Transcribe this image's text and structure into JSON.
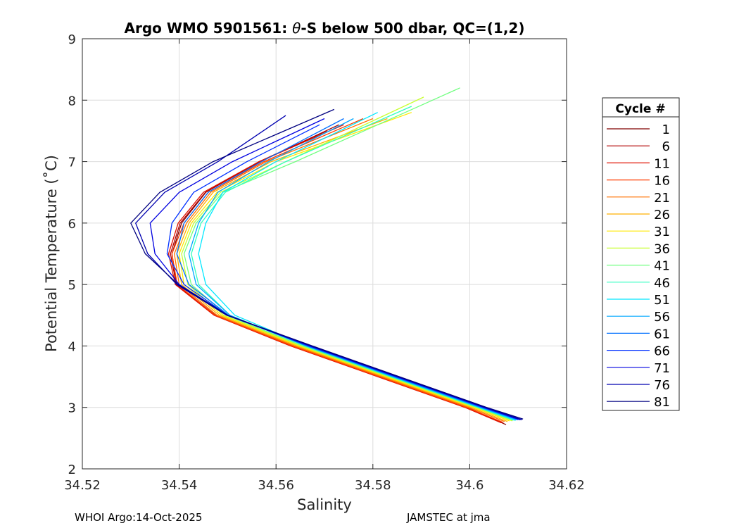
{
  "chart_data": {
    "type": "line",
    "title_prefix": "Argo WMO 5901561: ",
    "title_theta": "θ",
    "title_suffix": "-S below 500 dbar,  QC=(1,2)",
    "xlabel": "Salinity",
    "ylabel": "Potential Temperature (˚C)",
    "xlim": [
      34.52,
      34.62
    ],
    "ylim": [
      2,
      9
    ],
    "xticks": [
      34.52,
      34.54,
      34.56,
      34.58,
      34.6,
      34.62
    ],
    "xtick_labels": [
      "34.52",
      "34.54",
      "34.56",
      "34.58",
      "34.6",
      "34.62"
    ],
    "yticks": [
      2,
      3,
      4,
      5,
      6,
      7,
      8,
      9
    ],
    "ytick_labels": [
      "2",
      "3",
      "4",
      "5",
      "6",
      "7",
      "8",
      "9"
    ],
    "grid": true,
    "legend_title": "Cycle #",
    "legend_position": "outside-right",
    "legend": [
      {
        "label": "1",
        "color": "#800000"
      },
      {
        "label": "6",
        "color": "#b00000"
      },
      {
        "label": "11",
        "color": "#e01000"
      },
      {
        "label": "16",
        "color": "#ff3c00"
      },
      {
        "label": "21",
        "color": "#ff7000"
      },
      {
        "label": "26",
        "color": "#ffb000"
      },
      {
        "label": "31",
        "color": "#ffe800"
      },
      {
        "label": "36",
        "color": "#c8ff30"
      },
      {
        "label": "41",
        "color": "#70ff80"
      },
      {
        "label": "46",
        "color": "#30ffc0"
      },
      {
        "label": "51",
        "color": "#00e8ff"
      },
      {
        "label": "56",
        "color": "#00a8ff"
      },
      {
        "label": "61",
        "color": "#0070ff"
      },
      {
        "label": "66",
        "color": "#0030ff"
      },
      {
        "label": "71",
        "color": "#0000e0"
      },
      {
        "label": "76",
        "color": "#0000b0"
      },
      {
        "label": "81",
        "color": "#000080"
      }
    ],
    "series": [
      {
        "name": "1",
        "color": "#800000",
        "theta": [
          2.72,
          3.0,
          3.5,
          4.0,
          4.5,
          5.0,
          5.5,
          6.0,
          6.5,
          7.0,
          7.5
        ],
        "salinity": [
          34.6075,
          34.5995,
          34.5815,
          34.5635,
          34.5475,
          34.5395,
          34.5385,
          34.5405,
          34.5455,
          34.5565,
          34.5705
        ]
      },
      {
        "name": "6",
        "color": "#b00000",
        "theta": [
          2.74,
          3.0,
          3.5,
          4.0,
          4.5,
          5.0,
          5.5,
          6.0,
          6.5,
          7.0,
          7.6
        ],
        "salinity": [
          34.607,
          34.5992,
          34.5812,
          34.5632,
          34.5473,
          34.5394,
          34.5382,
          34.5402,
          34.5454,
          34.5567,
          34.573
        ]
      },
      {
        "name": "11",
        "color": "#e01000",
        "theta": [
          2.75,
          3.0,
          3.5,
          4.0,
          4.5,
          5.0,
          5.5,
          6.0,
          6.5,
          7.0,
          7.6
        ],
        "salinity": [
          34.6065,
          34.599,
          34.581,
          34.563,
          34.5472,
          34.5392,
          34.5378,
          34.5398,
          34.545,
          34.5565,
          34.574
        ]
      },
      {
        "name": "16",
        "color": "#ff3c00",
        "theta": [
          2.76,
          3.0,
          3.5,
          4.0,
          4.5,
          5.0,
          5.5,
          6.0,
          6.5,
          7.0,
          7.7
        ],
        "salinity": [
          34.6068,
          34.5993,
          34.5813,
          34.5633,
          34.5474,
          34.5396,
          34.5385,
          34.541,
          34.546,
          34.5575,
          34.578
        ]
      },
      {
        "name": "21",
        "color": "#ff7000",
        "theta": [
          2.77,
          3.0,
          3.5,
          4.0,
          4.5,
          5.0,
          5.5,
          6.0,
          6.5,
          7.0,
          7.7
        ],
        "salinity": [
          34.6072,
          34.5998,
          34.5818,
          34.5638,
          34.5478,
          34.54,
          34.539,
          34.5415,
          34.5465,
          34.558,
          34.58
        ]
      },
      {
        "name": "26",
        "color": "#ffb000",
        "theta": [
          2.77,
          3.0,
          3.5,
          4.0,
          4.5,
          5.0,
          5.5,
          6.0,
          6.5,
          7.0,
          7.7
        ],
        "salinity": [
          34.6078,
          34.6003,
          34.5823,
          34.5643,
          34.5483,
          34.5405,
          34.5395,
          34.542,
          34.547,
          34.559,
          34.583
        ]
      },
      {
        "name": "31",
        "color": "#ffe800",
        "theta": [
          2.78,
          3.0,
          3.5,
          4.0,
          4.5,
          5.0,
          5.5,
          6.0,
          6.5,
          7.0,
          7.8
        ],
        "salinity": [
          34.6082,
          34.6008,
          34.5828,
          34.5648,
          34.5488,
          34.541,
          34.54,
          34.5425,
          34.5478,
          34.56,
          34.588
        ]
      },
      {
        "name": "36",
        "color": "#c8ff30",
        "theta": [
          2.78,
          3.0,
          3.5,
          4.0,
          4.5,
          5.0,
          5.5,
          6.0,
          6.5,
          7.0,
          8.05
        ],
        "salinity": [
          34.6088,
          34.6012,
          34.5832,
          34.5652,
          34.5492,
          34.5418,
          34.5405,
          34.543,
          34.5485,
          34.562,
          34.5905
        ]
      },
      {
        "name": "41",
        "color": "#70ff80",
        "theta": [
          2.79,
          3.0,
          3.5,
          4.0,
          4.5,
          5.0,
          5.5,
          6.0,
          6.5,
          7.0,
          8.2
        ],
        "salinity": [
          34.609,
          34.6015,
          34.5835,
          34.5655,
          34.5498,
          34.5425,
          34.541,
          34.5435,
          34.549,
          34.564,
          34.598
        ]
      },
      {
        "name": "46",
        "color": "#30ffc0",
        "theta": [
          2.79,
          3.0,
          3.5,
          4.0,
          4.5,
          5.0,
          5.5,
          6.0,
          6.5,
          7.0,
          7.9
        ],
        "salinity": [
          34.6093,
          34.6018,
          34.5838,
          34.566,
          34.5505,
          34.544,
          34.5425,
          34.5445,
          34.5495,
          34.562,
          34.588
        ]
      },
      {
        "name": "51",
        "color": "#00e8ff",
        "theta": [
          2.79,
          3.0,
          3.5,
          4.0,
          4.5,
          5.0,
          5.5,
          6.0,
          6.5,
          7.0,
          7.8
        ],
        "salinity": [
          34.6095,
          34.602,
          34.584,
          34.5665,
          34.5515,
          34.5455,
          34.544,
          34.5455,
          34.549,
          34.56,
          34.581
        ]
      },
      {
        "name": "56",
        "color": "#00a8ff",
        "theta": [
          2.8,
          3.0,
          3.5,
          4.0,
          4.5,
          5.0,
          5.5,
          6.0,
          6.5,
          7.0,
          7.7
        ],
        "salinity": [
          34.6098,
          34.6022,
          34.5842,
          34.5662,
          34.5505,
          34.5435,
          34.542,
          34.544,
          34.548,
          34.5585,
          34.576
        ]
      },
      {
        "name": "61",
        "color": "#0070ff",
        "theta": [
          2.8,
          3.0,
          3.5,
          4.0,
          4.5,
          5.0,
          5.5,
          6.0,
          6.5,
          7.0,
          7.7
        ],
        "salinity": [
          34.61,
          34.6025,
          34.5845,
          34.5665,
          34.5502,
          34.542,
          34.5395,
          34.541,
          34.546,
          34.557,
          34.574
        ]
      },
      {
        "name": "66",
        "color": "#0030ff",
        "theta": [
          2.8,
          3.0,
          3.5,
          4.0,
          4.5,
          5.0,
          5.5,
          6.0,
          6.5,
          7.0,
          7.6
        ],
        "salinity": [
          34.6103,
          34.6028,
          34.5848,
          34.5668,
          34.55,
          34.541,
          34.5375,
          34.5385,
          34.543,
          34.554,
          34.569
        ]
      },
      {
        "name": "71",
        "color": "#0000e0",
        "theta": [
          2.8,
          3.0,
          3.5,
          4.0,
          4.5,
          5.0,
          5.5,
          6.0,
          6.5,
          7.0,
          7.7
        ],
        "salinity": [
          34.6105,
          34.603,
          34.585,
          34.567,
          34.55,
          34.54,
          34.535,
          34.534,
          34.54,
          34.551,
          34.57
        ]
      },
      {
        "name": "76",
        "color": "#0000b0",
        "theta": [
          2.8,
          3.0,
          3.5,
          4.0,
          4.5,
          5.0,
          5.5,
          6.0,
          6.5,
          7.0,
          7.75
        ],
        "salinity": [
          34.6108,
          34.6032,
          34.5852,
          34.5672,
          34.5498,
          34.5395,
          34.5335,
          34.531,
          34.537,
          34.548,
          34.562
        ]
      },
      {
        "name": "81",
        "color": "#000080",
        "theta": [
          2.81,
          3.0,
          3.5,
          4.0,
          4.5,
          5.0,
          5.5,
          6.0,
          6.5,
          7.0,
          7.85
        ],
        "salinity": [
          34.611,
          34.6035,
          34.5855,
          34.5675,
          34.55,
          34.5398,
          34.533,
          34.53,
          34.536,
          34.547,
          34.572
        ]
      }
    ]
  },
  "footer": {
    "left": "WHOI Argo:14-Oct-2025",
    "right": "JAMSTEC at jma"
  }
}
